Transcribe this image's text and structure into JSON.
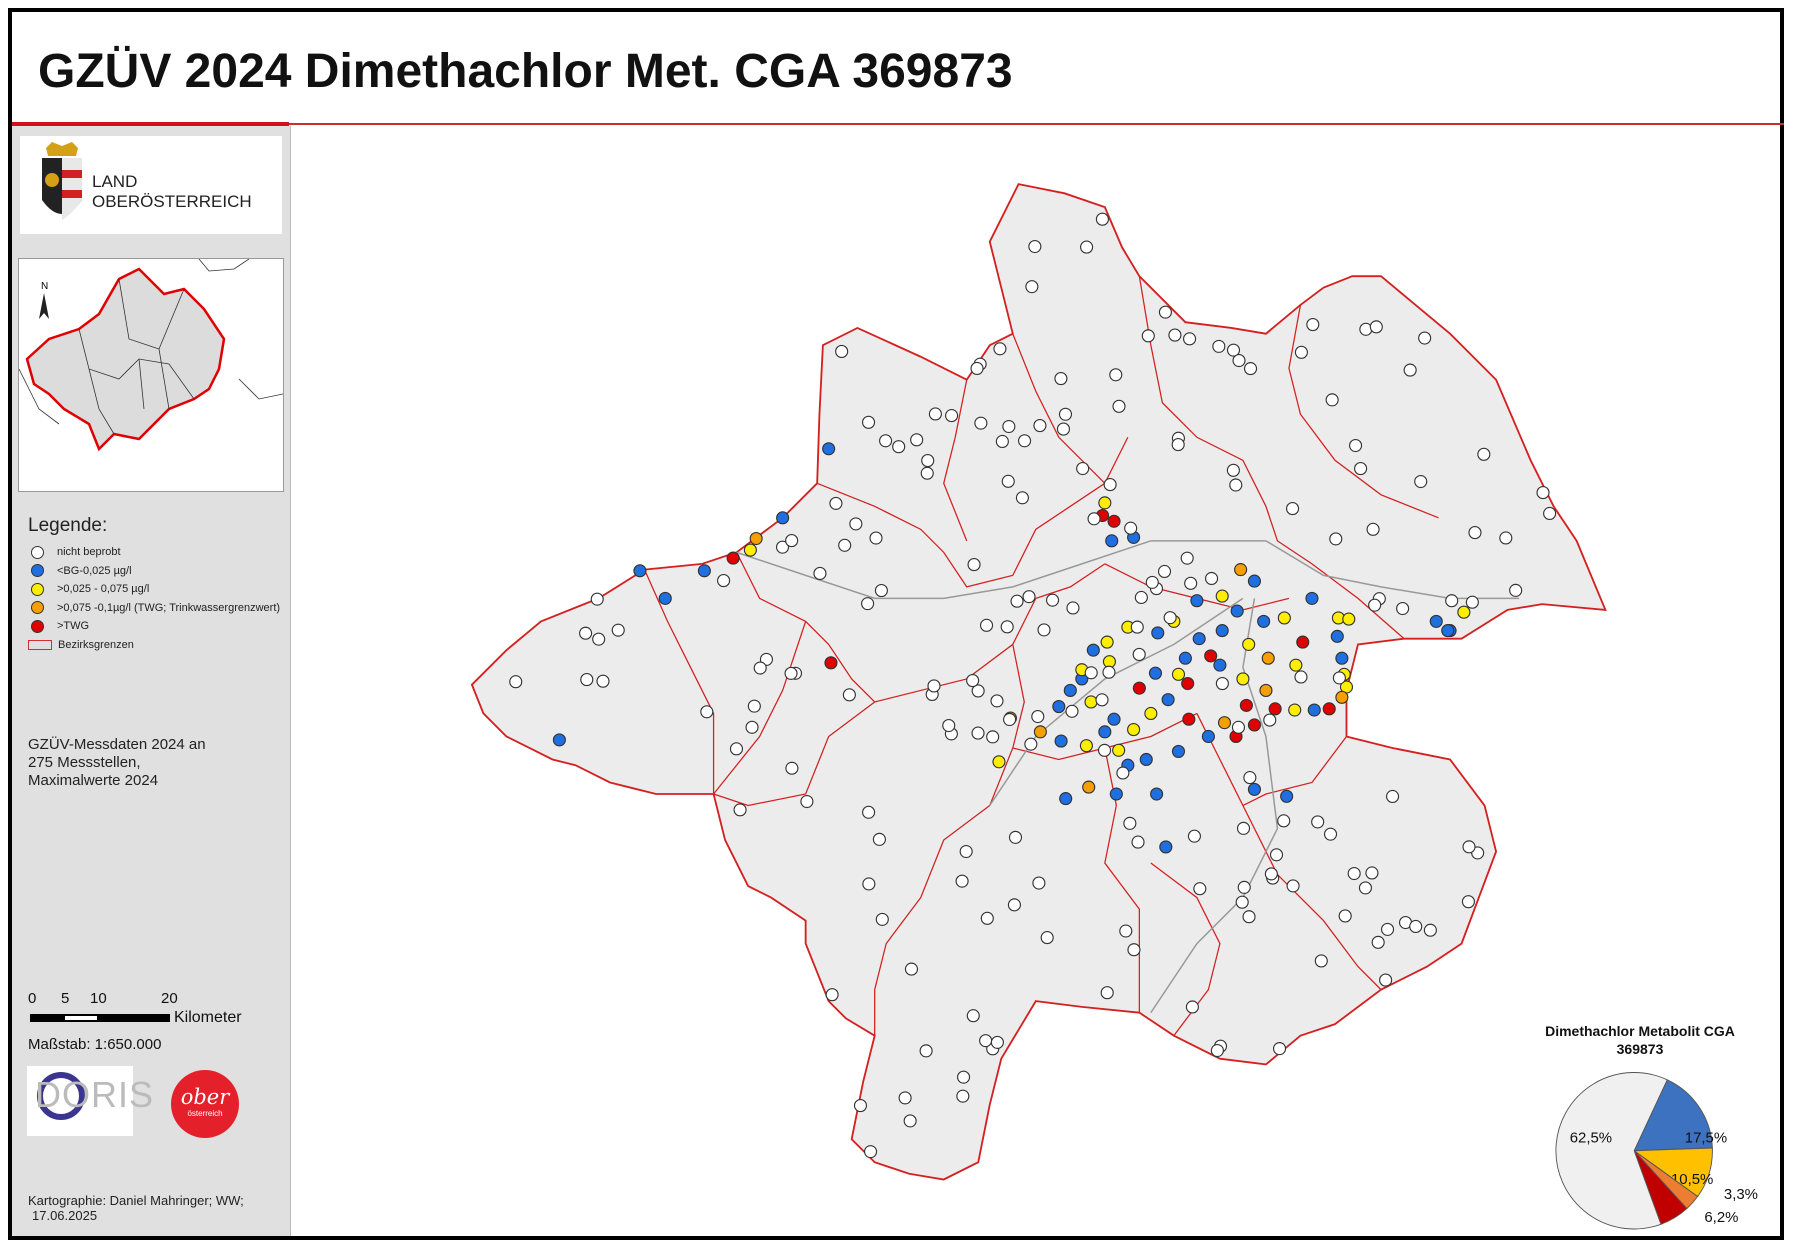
{
  "header": {
    "title": "GZÜV 2024 Dimethachlor Met. CGA 369873"
  },
  "logo": {
    "line1": "LAND",
    "line2": "OBERÖSTERREICH"
  },
  "legend": {
    "title": "Legende:",
    "items": [
      {
        "label": "nicht beprobt",
        "color": "#ffffff"
      },
      {
        "label": "<BG-0,025 µg/l",
        "color": "#1f6fe0"
      },
      {
        "label": ">0,025 - 0,075 µg/l",
        "color": "#ffee00"
      },
      {
        "label": ">0,075 -0,1µg/l (TWG; Trinkwassergrenzwert)",
        "color": "#f5a000"
      },
      {
        "label": ">TWG",
        "color": "#e00000"
      }
    ],
    "boundary_label": "Bezirksgrenzen",
    "boundary_color": "#d03030"
  },
  "info": {
    "line1": "GZÜV-Messdaten 2024 an",
    "line2": "275 Messstellen,",
    "line3": "Maximalwerte 2024"
  },
  "scale": {
    "ticks": [
      "0",
      "5",
      "10",
      "20"
    ],
    "unit": "Kilometer",
    "ratio": "Maßstab: 1:650.000"
  },
  "logos": {
    "doris": "DORIS",
    "ooe_top": "ober",
    "ooe_bottom": "österreich"
  },
  "credit": {
    "line1": "Kartographie: Daniel Mahringer; WW;",
    "line2": "17.06.2025"
  },
  "north_label": "N",
  "chart_data": {
    "type": "pie",
    "title": "Dimethachlor Metabolit CGA",
    "title_line2": "369873",
    "slices": [
      {
        "label": "17,5%",
        "value": 17.5,
        "color": "#3d72c0"
      },
      {
        "label": "10,5%",
        "value": 10.5,
        "color": "#ffc000"
      },
      {
        "label": "3,3%",
        "value": 3.3,
        "color": "#ed7d31"
      },
      {
        "label": "6,2%",
        "value": 6.2,
        "color": "#c00000"
      },
      {
        "label": "62,5%",
        "value": 62.5,
        "color": "#f0f0f0"
      }
    ]
  }
}
